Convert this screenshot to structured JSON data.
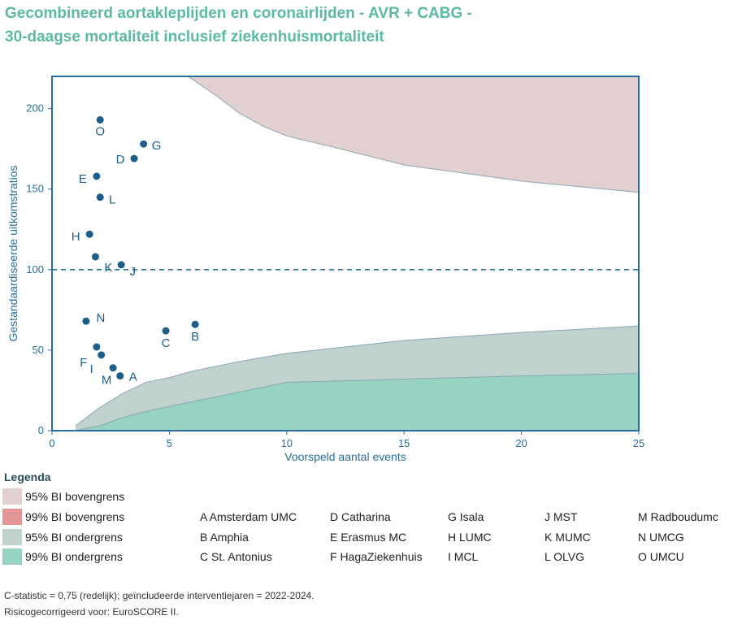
{
  "title": {
    "line1": "Gecombineerd aortakleplijden en coronairlijden - AVR + CABG -",
    "line2": "30-daagse mortaliteit inclusief ziekenhuismortaliteit"
  },
  "chart_data": {
    "type": "scatter",
    "xlabel": "Voorspeld aantal events",
    "ylabel": "Gestandaardiseerde uitkomstratios",
    "xlim": [
      0,
      25
    ],
    "ylim": [
      0,
      220
    ],
    "xticks": [
      0,
      5,
      10,
      15,
      20,
      25
    ],
    "yticks": [
      0,
      50,
      100,
      150,
      200
    ],
    "reference_line": 100,
    "points": [
      {
        "label": "O",
        "x": 2.05,
        "y": 193
      },
      {
        "label": "G",
        "x": 3.9,
        "y": 178
      },
      {
        "label": "D",
        "x": 3.5,
        "y": 169
      },
      {
        "label": "E",
        "x": 1.9,
        "y": 158
      },
      {
        "label": "L",
        "x": 2.05,
        "y": 145
      },
      {
        "label": "H",
        "x": 1.6,
        "y": 122
      },
      {
        "label": "K",
        "x": 1.85,
        "y": 108
      },
      {
        "label": "J",
        "x": 2.95,
        "y": 103
      },
      {
        "label": "N",
        "x": 1.45,
        "y": 68
      },
      {
        "label": "B",
        "x": 6.1,
        "y": 66
      },
      {
        "label": "C",
        "x": 4.85,
        "y": 62
      },
      {
        "label": "F",
        "x": 1.9,
        "y": 52
      },
      {
        "label": "I",
        "x": 2.1,
        "y": 47
      },
      {
        "label": "M",
        "x": 2.6,
        "y": 39
      },
      {
        "label": "A",
        "x": 2.9,
        "y": 34
      }
    ],
    "bands": {
      "upper95": [
        [
          5.8,
          220
        ],
        [
          7,
          208
        ],
        [
          8,
          197
        ],
        [
          9,
          189
        ],
        [
          10,
          183
        ],
        [
          12,
          176
        ],
        [
          15,
          165
        ],
        [
          18,
          159
        ],
        [
          20,
          155
        ],
        [
          25,
          148
        ]
      ],
      "lower95": [
        [
          1,
          3
        ],
        [
          2,
          14
        ],
        [
          3,
          23
        ],
        [
          4,
          30
        ],
        [
          5,
          33
        ],
        [
          6,
          37
        ],
        [
          8,
          43
        ],
        [
          10,
          48
        ],
        [
          15,
          56
        ],
        [
          20,
          61
        ],
        [
          25,
          65
        ]
      ],
      "lower99": [
        [
          1,
          0
        ],
        [
          2,
          3
        ],
        [
          3,
          8
        ],
        [
          4,
          12
        ],
        [
          5,
          15
        ],
        [
          6,
          18
        ],
        [
          8,
          24
        ],
        [
          10,
          30
        ],
        [
          15,
          32
        ],
        [
          20,
          34
        ],
        [
          25,
          35.5
        ]
      ]
    },
    "colors": {
      "upper95": "#e2cfd0",
      "upper99": "#e39695",
      "lower95": "#bfd2ce",
      "lower99": "#96d3c2",
      "point": "#1c5e87",
      "axis": "#2a6f99"
    }
  },
  "legend": {
    "title": "Legenda",
    "items": [
      {
        "label": "95% BI bovengrens",
        "color": "#e2cfd0"
      },
      {
        "label": "99% BI bovengrens",
        "color": "#e39695"
      },
      {
        "label": "95% BI ondergrens",
        "color": "#bfd2ce"
      },
      {
        "label": "99% BI ondergrens",
        "color": "#96d3c2"
      }
    ]
  },
  "hospitals": [
    [
      "A Amsterdam UMC",
      "B Amphia",
      "C St. Antonius"
    ],
    [
      "D Catharina",
      "E Erasmus MC",
      "F HagaZiekenhuis"
    ],
    [
      "G Isala",
      "H LUMC",
      "I MCL"
    ],
    [
      "J MST",
      "K MUMC",
      "L OLVG"
    ],
    [
      "M Radboudumc",
      "N UMCG",
      "O UMCU"
    ]
  ],
  "footnotes": {
    "line1": "C-statistic =  0,75 (redelijk); geïncludeerde interventiejaren = 2022-2024.",
    "line2": "Risicogecorrigeerd voor: EuroSCORE II."
  }
}
